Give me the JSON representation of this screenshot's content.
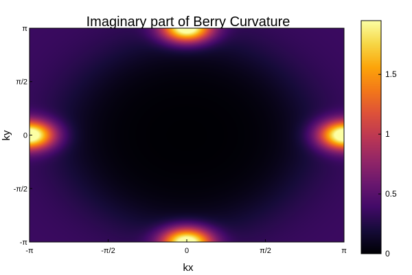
{
  "chart_data": {
    "type": "heatmap",
    "title": "Imaginary part of Berry Curvature",
    "xlabel": "kx",
    "ylabel": "ky",
    "x_ticks": [
      {
        "value": -3.14159,
        "label": "-π"
      },
      {
        "value": -1.5708,
        "label": "-π/2"
      },
      {
        "value": 0,
        "label": "0"
      },
      {
        "value": 1.5708,
        "label": "π/2"
      },
      {
        "value": 3.14159,
        "label": "π"
      }
    ],
    "y_ticks": [
      {
        "value": -3.14159,
        "label": "-π"
      },
      {
        "value": -1.5708,
        "label": "-π/2"
      },
      {
        "value": 0,
        "label": "0"
      },
      {
        "value": 1.5708,
        "label": "π/2"
      },
      {
        "value": 3.14159,
        "label": "π"
      }
    ],
    "xlim": [
      -3.14159,
      3.14159
    ],
    "ylim": [
      -3.14159,
      3.14159
    ],
    "colormap": "inferno",
    "colorbar": {
      "range": [
        0,
        1.95
      ],
      "ticks": [
        {
          "value": 0,
          "label": "0"
        },
        {
          "value": 0.5,
          "label": "0.5"
        },
        {
          "value": 1,
          "label": "1"
        },
        {
          "value": 1.5,
          "label": "1.5"
        }
      ]
    },
    "hotspots": [
      {
        "kx": 0,
        "ky": 3.14159,
        "value": 1.9
      },
      {
        "kx": 0,
        "ky": -3.14159,
        "value": 1.9
      },
      {
        "kx": 3.14159,
        "ky": 0,
        "value": 1.9
      },
      {
        "kx": -3.14159,
        "ky": 0,
        "value": 1.9
      }
    ],
    "minimum": {
      "kx": 0,
      "ky": 0,
      "value": 0
    },
    "grid": false
  }
}
